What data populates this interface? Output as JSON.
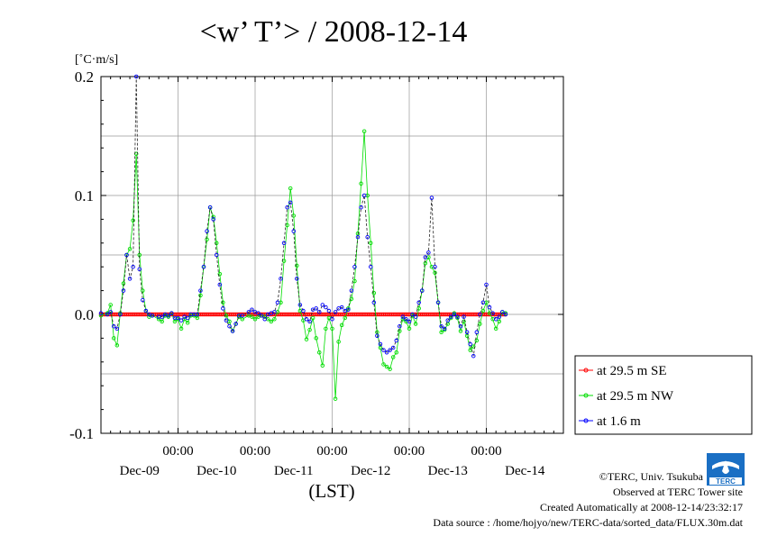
{
  "chart_data": {
    "type": "line",
    "title": "<w’ T’> / 2008-12-14",
    "unit_label": "[˚C·m/s]",
    "xlabel": "(LST)",
    "ylim": [
      -0.1,
      0.2
    ],
    "yticks": [
      {
        "value": 0.2,
        "label": "0.2"
      },
      {
        "value": 0.1,
        "label": "0.1"
      },
      {
        "value": 0.0,
        "label": "0.0"
      },
      {
        "value": -0.1,
        "label": "-0.1"
      }
    ],
    "xlim_hours": [
      0,
      144
    ],
    "x_time_ticks": [
      {
        "hour": 24,
        "label": "00:00"
      },
      {
        "hour": 48,
        "label": "00:00"
      },
      {
        "hour": 72,
        "label": "00:00"
      },
      {
        "hour": 96,
        "label": "00:00"
      },
      {
        "hour": 120,
        "label": "00:00"
      }
    ],
    "x_day_labels": [
      {
        "hour": 12,
        "label": "Dec-09"
      },
      {
        "hour": 36,
        "label": "Dec-10"
      },
      {
        "hour": 60,
        "label": "Dec-11"
      },
      {
        "hour": 84,
        "label": "Dec-12"
      },
      {
        "hour": 108,
        "label": "Dec-13"
      },
      {
        "hour": 132,
        "label": "Dec-14"
      }
    ],
    "grid": true,
    "legend_position": "right",
    "series": [
      {
        "name": "at 29.5 m SE",
        "color": "#ff0000",
        "points": [
          [
            0,
            0.0
          ],
          [
            144,
            0.0
          ]
        ]
      },
      {
        "name": "at 29.5 m NW",
        "color": "#00dd00",
        "points": [
          [
            0,
            -0.001
          ],
          [
            2,
            0.001
          ],
          [
            3,
            0.008
          ],
          [
            4,
            -0.02
          ],
          [
            5,
            -0.026
          ],
          [
            6,
            0.001
          ],
          [
            7,
            0.026
          ],
          [
            8,
            0.05
          ],
          [
            9,
            0.055
          ],
          [
            10,
            0.079
          ],
          [
            11,
            0.135
          ],
          [
            12,
            0.05
          ],
          [
            13,
            0.02
          ],
          [
            14,
            0.003
          ],
          [
            15,
            -0.002
          ],
          [
            16,
            -0.001
          ],
          [
            18,
            -0.004
          ],
          [
            19,
            -0.006
          ],
          [
            20,
            -0.001
          ],
          [
            21,
            -0.002
          ],
          [
            22,
            0.001
          ],
          [
            23,
            -0.006
          ],
          [
            24,
            -0.004
          ],
          [
            25,
            -0.012
          ],
          [
            26,
            -0.004
          ],
          [
            27,
            -0.007
          ],
          [
            28,
            -0.001
          ],
          [
            29,
            -0.001
          ],
          [
            30,
            -0.003
          ],
          [
            31,
            0.016
          ],
          [
            32,
            0.04
          ],
          [
            33,
            0.063
          ],
          [
            34,
            0.09
          ],
          [
            35,
            0.082
          ],
          [
            36,
            0.06
          ],
          [
            37,
            0.034
          ],
          [
            38,
            0.01
          ],
          [
            39,
            -0.001
          ],
          [
            40,
            -0.006
          ],
          [
            41,
            -0.014
          ],
          [
            42,
            -0.008
          ],
          [
            43,
            -0.002
          ],
          [
            44,
            -0.004
          ],
          [
            46,
            -0.001
          ],
          [
            47,
            -0.002
          ],
          [
            48,
            -0.004
          ],
          [
            49,
            -0.002
          ],
          [
            50,
            -0.001
          ],
          [
            51,
            -0.002
          ],
          [
            52,
            -0.004
          ],
          [
            53,
            -0.006
          ],
          [
            54,
            -0.004
          ],
          [
            55,
            0.002
          ],
          [
            56,
            0.01
          ],
          [
            57,
            0.045
          ],
          [
            58,
            0.075
          ],
          [
            59,
            0.106
          ],
          [
            60,
            0.083
          ],
          [
            61,
            0.041
          ],
          [
            62,
            0.003
          ],
          [
            63,
            -0.005
          ],
          [
            64,
            -0.021
          ],
          [
            65,
            -0.013
          ],
          [
            66,
            -0.003
          ],
          [
            67,
            -0.02
          ],
          [
            68,
            -0.032
          ],
          [
            69,
            -0.043
          ],
          [
            70,
            -0.012
          ],
          [
            71,
            -0.003
          ],
          [
            72,
            -0.012
          ],
          [
            73,
            -0.071
          ],
          [
            74,
            -0.023
          ],
          [
            75,
            -0.009
          ],
          [
            76,
            -0.003
          ],
          [
            77,
            0.005
          ],
          [
            78,
            0.013
          ],
          [
            79,
            0.028
          ],
          [
            80,
            0.068
          ],
          [
            81,
            0.11
          ],
          [
            82,
            0.154
          ],
          [
            83,
            0.1
          ],
          [
            84,
            0.06
          ],
          [
            85,
            0.018
          ],
          [
            86,
            -0.015
          ],
          [
            87,
            -0.028
          ],
          [
            88,
            -0.042
          ],
          [
            89,
            -0.044
          ],
          [
            90,
            -0.046
          ],
          [
            91,
            -0.036
          ],
          [
            92,
            -0.032
          ],
          [
            93,
            -0.014
          ],
          [
            94,
            -0.004
          ],
          [
            95,
            -0.006
          ],
          [
            96,
            -0.012
          ],
          [
            97,
            -0.001
          ],
          [
            98,
            -0.008
          ],
          [
            99,
            0.005
          ],
          [
            100,
            0.02
          ],
          [
            101,
            0.043
          ],
          [
            102,
            0.048
          ],
          [
            103,
            0.04
          ],
          [
            104,
            0.035
          ],
          [
            105,
            0.01
          ],
          [
            106,
            -0.015
          ],
          [
            107,
            -0.013
          ],
          [
            108,
            -0.008
          ],
          [
            109,
            -0.003
          ],
          [
            110,
            0.001
          ],
          [
            111,
            -0.003
          ],
          [
            112,
            -0.014
          ],
          [
            113,
            -0.006
          ],
          [
            114,
            -0.018
          ],
          [
            115,
            -0.03
          ],
          [
            116,
            -0.027
          ],
          [
            117,
            -0.022
          ],
          [
            118,
            -0.008
          ],
          [
            119,
            0.003
          ],
          [
            120,
            0.01
          ],
          [
            121,
            0.001
          ],
          [
            122,
            -0.004
          ],
          [
            123,
            -0.012
          ],
          [
            124,
            -0.006
          ],
          [
            125,
            0.002
          ],
          [
            126,
            0.001
          ]
        ]
      },
      {
        "name": "at 1.6 m",
        "color": "#0000ff",
        "points": [
          [
            0,
            0.001
          ],
          [
            2,
            0.0
          ],
          [
            3,
            0.002
          ],
          [
            4,
            -0.01
          ],
          [
            5,
            -0.012
          ],
          [
            6,
            0.0
          ],
          [
            7,
            0.02
          ],
          [
            8,
            0.05
          ],
          [
            9,
            0.03
          ],
          [
            10,
            0.04
          ],
          [
            11,
            0.2
          ],
          [
            12,
            0.038
          ],
          [
            13,
            0.012
          ],
          [
            14,
            0.003
          ],
          [
            15,
            0.0
          ],
          [
            16,
            -0.001
          ],
          [
            18,
            -0.002
          ],
          [
            19,
            -0.002
          ],
          [
            20,
            0.0
          ],
          [
            21,
            -0.001
          ],
          [
            22,
            0.001
          ],
          [
            23,
            -0.003
          ],
          [
            24,
            -0.003
          ],
          [
            25,
            -0.005
          ],
          [
            26,
            -0.002
          ],
          [
            27,
            -0.003
          ],
          [
            28,
            0.0
          ],
          [
            29,
            0.0
          ],
          [
            30,
            0.0
          ],
          [
            31,
            0.02
          ],
          [
            32,
            0.04
          ],
          [
            33,
            0.07
          ],
          [
            34,
            0.09
          ],
          [
            35,
            0.08
          ],
          [
            36,
            0.05
          ],
          [
            37,
            0.025
          ],
          [
            38,
            0.005
          ],
          [
            39,
            -0.005
          ],
          [
            40,
            -0.01
          ],
          [
            41,
            -0.014
          ],
          [
            42,
            -0.008
          ],
          [
            43,
            -0.001
          ],
          [
            44,
            -0.001
          ],
          [
            46,
            0.002
          ],
          [
            47,
            0.004
          ],
          [
            48,
            0.002
          ],
          [
            49,
            0.001
          ],
          [
            50,
            -0.001
          ],
          [
            51,
            -0.004
          ],
          [
            52,
            0.0
          ],
          [
            53,
            0.001
          ],
          [
            54,
            0.002
          ],
          [
            55,
            0.01
          ],
          [
            56,
            0.03
          ],
          [
            57,
            0.06
          ],
          [
            58,
            0.09
          ],
          [
            59,
            0.094
          ],
          [
            60,
            0.07
          ],
          [
            61,
            0.03
          ],
          [
            62,
            0.008
          ],
          [
            63,
            0.003
          ],
          [
            64,
            -0.004
          ],
          [
            65,
            -0.006
          ],
          [
            66,
            0.004
          ],
          [
            67,
            0.005
          ],
          [
            68,
            0.002
          ],
          [
            69,
            0.008
          ],
          [
            70,
            0.006
          ],
          [
            71,
            0.003
          ],
          [
            72,
            -0.004
          ],
          [
            73,
            0.002
          ],
          [
            74,
            0.005
          ],
          [
            75,
            0.006
          ],
          [
            76,
            0.003
          ],
          [
            77,
            0.004
          ],
          [
            78,
            0.02
          ],
          [
            79,
            0.04
          ],
          [
            80,
            0.065
          ],
          [
            81,
            0.09
          ],
          [
            82,
            0.1
          ],
          [
            83,
            0.065
          ],
          [
            84,
            0.04
          ],
          [
            85,
            0.01
          ],
          [
            86,
            -0.018
          ],
          [
            87,
            -0.025
          ],
          [
            88,
            -0.03
          ],
          [
            89,
            -0.032
          ],
          [
            90,
            -0.03
          ],
          [
            91,
            -0.028
          ],
          [
            92,
            -0.022
          ],
          [
            93,
            -0.01
          ],
          [
            94,
            -0.002
          ],
          [
            95,
            -0.004
          ],
          [
            96,
            -0.006
          ],
          [
            97,
            0.0
          ],
          [
            98,
            -0.002
          ],
          [
            99,
            0.01
          ],
          [
            100,
            0.02
          ],
          [
            101,
            0.048
          ],
          [
            102,
            0.052
          ],
          [
            103,
            0.098
          ],
          [
            104,
            0.04
          ],
          [
            105,
            0.01
          ],
          [
            106,
            -0.01
          ],
          [
            107,
            -0.012
          ],
          [
            108,
            -0.005
          ],
          [
            109,
            -0.002
          ],
          [
            110,
            0.0
          ],
          [
            111,
            -0.002
          ],
          [
            112,
            -0.01
          ],
          [
            113,
            -0.002
          ],
          [
            114,
            -0.015
          ],
          [
            115,
            -0.025
          ],
          [
            116,
            -0.035
          ],
          [
            117,
            -0.015
          ],
          [
            118,
            0.0
          ],
          [
            119,
            0.01
          ],
          [
            120,
            0.025
          ],
          [
            121,
            0.006
          ],
          [
            122,
            0.001
          ],
          [
            123,
            -0.004
          ],
          [
            124,
            -0.002
          ],
          [
            125,
            0.002
          ],
          [
            126,
            0.0
          ]
        ]
      }
    ]
  },
  "credits": {
    "copyright": "©TERC, Univ. Tsukuba",
    "observed": "Observed at TERC Tower site",
    "created": "Created Automatically at 2008-12-14/23:32:17",
    "source": "Data source : /home/hojyo/new/TERC-data/sorted_data/FLUX.30m.dat",
    "logo_text": "TERC"
  }
}
